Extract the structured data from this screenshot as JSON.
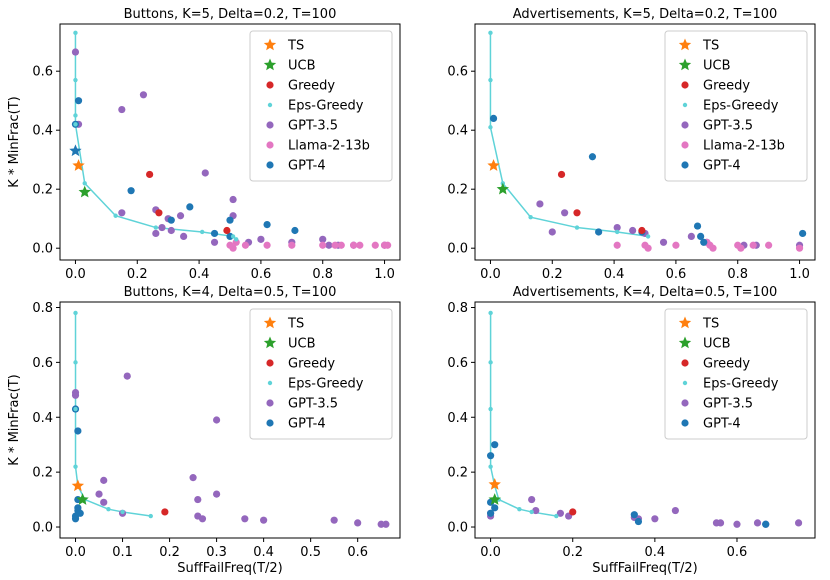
{
  "colors": {
    "TS": "#ff7f0e",
    "UCB": "#2ca02c",
    "Greedy": "#d62728",
    "Eps-Greedy": "#5fd3d8",
    "GPT-3.5": "#9467bd",
    "Llama-2-13b": "#e377c2",
    "GPT-4": "#1f77b4"
  },
  "chart_data": [
    {
      "type": "scatter",
      "title": "Buttons, K=5, Delta=0.2, T=100",
      "xlabel": "",
      "ylabel": "K * MinFrac(T)",
      "xlim": [
        -0.05,
        1.05
      ],
      "ylim": [
        -0.04,
        0.76
      ],
      "xticks": [
        0.0,
        0.2,
        0.4,
        0.6,
        0.8,
        1.0
      ],
      "xtick_labels": [
        "0.0",
        "0.2",
        "0.4",
        "0.6",
        "0.8",
        "1.0"
      ],
      "yticks": [
        0.0,
        0.2,
        0.4,
        0.6
      ],
      "ytick_labels": [
        "0.0",
        "0.2",
        "0.4",
        "0.6"
      ],
      "legend": [
        "TS",
        "UCB",
        "Greedy",
        "Eps-Greedy",
        "GPT-3.5",
        "Llama-2-13b",
        "GPT-4"
      ],
      "legend_position": "top-right",
      "series": {
        "TS": [
          [
            0.01,
            0.28
          ]
        ],
        "UCB": [
          [
            0.03,
            0.19
          ]
        ],
        "Greedy": [
          [
            0.24,
            0.25
          ],
          [
            0.27,
            0.12
          ],
          [
            0.49,
            0.06
          ]
        ],
        "Eps-Greedy": [
          [
            0.0,
            0.73
          ],
          [
            0.0,
            0.57
          ],
          [
            0.0,
            0.45
          ],
          [
            0.0,
            0.42
          ],
          [
            0.03,
            0.22
          ],
          [
            0.13,
            0.11
          ],
          [
            0.26,
            0.07
          ],
          [
            0.41,
            0.055
          ],
          [
            0.51,
            0.04
          ],
          [
            0.52,
            0.03
          ]
        ],
        "GPT-3.5": [
          [
            0.0,
            0.665
          ],
          [
            0.01,
            0.42
          ],
          [
            0.15,
            0.47
          ],
          [
            0.22,
            0.52
          ],
          [
            0.15,
            0.12
          ],
          [
            0.42,
            0.255
          ],
          [
            0.3,
            0.1
          ],
          [
            0.26,
            0.13
          ],
          [
            0.28,
            0.07
          ],
          [
            0.34,
            0.11
          ],
          [
            0.31,
            0.06
          ],
          [
            0.35,
            0.04
          ],
          [
            0.26,
            0.05
          ],
          [
            0.45,
            0.02
          ],
          [
            0.51,
            0.165
          ],
          [
            0.51,
            0.11
          ],
          [
            0.56,
            0.02
          ],
          [
            0.6,
            0.03
          ],
          [
            0.7,
            0.02
          ],
          [
            0.8,
            0.03
          ],
          [
            0.82,
            0.01
          ],
          [
            0.85,
            0.01
          ],
          [
            0.9,
            0.01
          ],
          [
            1.0,
            0.01
          ]
        ],
        "Llama-2-13b": [
          [
            0.5,
            0.01
          ],
          [
            0.51,
            0.0
          ],
          [
            0.52,
            0.02
          ],
          [
            0.55,
            0.01
          ],
          [
            0.62,
            0.01
          ],
          [
            0.7,
            0.01
          ],
          [
            0.8,
            0.01
          ],
          [
            0.84,
            0.01
          ],
          [
            0.86,
            0.01
          ],
          [
            0.9,
            0.01
          ],
          [
            0.92,
            0.01
          ],
          [
            0.97,
            0.01
          ],
          [
            1.0,
            0.01
          ],
          [
            1.01,
            0.01
          ]
        ],
        "GPT-4": [
          [
            0.0,
            0.33
          ],
          [
            0.01,
            0.5
          ],
          [
            0.0,
            0.42
          ],
          [
            0.18,
            0.195
          ],
          [
            0.31,
            0.095
          ],
          [
            0.37,
            0.14
          ],
          [
            0.45,
            0.05
          ],
          [
            0.5,
            0.095
          ],
          [
            0.5,
            0.04
          ],
          [
            0.62,
            0.08
          ],
          [
            0.71,
            0.06
          ]
        ]
      },
      "star_markers": {
        "GPT-4": [
          [
            0.0,
            0.33
          ]
        ]
      }
    },
    {
      "type": "scatter",
      "title": "Advertisements, K=5, Delta=0.2, T=100",
      "xlabel": "",
      "ylabel": "",
      "xlim": [
        -0.05,
        1.05
      ],
      "ylim": [
        -0.04,
        0.76
      ],
      "xticks": [
        0.0,
        0.2,
        0.4,
        0.6,
        0.8,
        1.0
      ],
      "xtick_labels": [
        "0.0",
        "0.2",
        "0.4",
        "0.6",
        "0.8",
        "1.0"
      ],
      "yticks": [
        0.0,
        0.2,
        0.4,
        0.6
      ],
      "ytick_labels": [
        "0.0",
        "0.2",
        "0.4",
        "0.6"
      ],
      "legend": [
        "TS",
        "UCB",
        "Greedy",
        "Eps-Greedy",
        "GPT-3.5",
        "Llama-2-13b",
        "GPT-4"
      ],
      "legend_position": "top-right",
      "series": {
        "TS": [
          [
            0.01,
            0.28
          ]
        ],
        "UCB": [
          [
            0.04,
            0.2
          ]
        ],
        "Greedy": [
          [
            0.23,
            0.25
          ],
          [
            0.28,
            0.12
          ],
          [
            0.49,
            0.06
          ]
        ],
        "Eps-Greedy": [
          [
            0.0,
            0.73
          ],
          [
            0.0,
            0.57
          ],
          [
            0.0,
            0.41
          ],
          [
            0.04,
            0.22
          ],
          [
            0.13,
            0.105
          ],
          [
            0.28,
            0.07
          ],
          [
            0.41,
            0.055
          ],
          [
            0.51,
            0.04
          ]
        ],
        "GPT-3.5": [
          [
            0.16,
            0.15
          ],
          [
            0.2,
            0.055
          ],
          [
            0.24,
            0.12
          ],
          [
            0.41,
            0.07
          ],
          [
            0.46,
            0.06
          ],
          [
            0.5,
            0.05
          ],
          [
            0.56,
            0.02
          ],
          [
            0.65,
            0.04
          ],
          [
            0.7,
            0.02
          ],
          [
            0.82,
            0.01
          ],
          [
            0.86,
            0.01
          ],
          [
            1.0,
            0.01
          ]
        ],
        "Llama-2-13b": [
          [
            0.41,
            0.01
          ],
          [
            0.5,
            0.01
          ],
          [
            0.51,
            0.0
          ],
          [
            0.6,
            0.01
          ],
          [
            0.7,
            0.02
          ],
          [
            0.71,
            0.01
          ],
          [
            0.72,
            0.0
          ],
          [
            0.8,
            0.01
          ],
          [
            0.81,
            0.0
          ],
          [
            0.85,
            0.01
          ],
          [
            0.9,
            0.01
          ],
          [
            1.0,
            0.0
          ]
        ],
        "GPT-4": [
          [
            0.01,
            0.44
          ],
          [
            0.33,
            0.31
          ],
          [
            0.35,
            0.055
          ],
          [
            0.49,
            0.055
          ],
          [
            0.67,
            0.075
          ],
          [
            0.68,
            0.04
          ],
          [
            0.69,
            0.02
          ],
          [
            1.01,
            0.05
          ]
        ]
      }
    },
    {
      "type": "scatter",
      "title": "Buttons, K=4, Delta=0.5, T=100",
      "xlabel": "SuffFailFreq(T/2)",
      "ylabel": "K * MinFrac(T)",
      "xlim": [
        -0.033,
        0.69
      ],
      "ylim": [
        -0.04,
        0.82
      ],
      "xticks": [
        0.0,
        0.1,
        0.2,
        0.3,
        0.4,
        0.5,
        0.6
      ],
      "xtick_labels": [
        "0.0",
        "0.1",
        "0.2",
        "0.3",
        "0.4",
        "0.5",
        "0.6"
      ],
      "yticks": [
        0.0,
        0.2,
        0.4,
        0.6,
        0.8
      ],
      "ytick_labels": [
        "0.0",
        "0.2",
        "0.4",
        "0.6",
        "0.8"
      ],
      "legend": [
        "TS",
        "UCB",
        "Greedy",
        "Eps-Greedy",
        "GPT-3.5",
        "GPT-4"
      ],
      "legend_position": "top-right",
      "series": {
        "TS": [
          [
            0.005,
            0.15
          ]
        ],
        "UCB": [
          [
            0.015,
            0.1
          ]
        ],
        "Greedy": [
          [
            0.19,
            0.055
          ]
        ],
        "Eps-Greedy": [
          [
            0.0,
            0.78
          ],
          [
            0.0,
            0.6
          ],
          [
            0.0,
            0.43
          ],
          [
            0.0,
            0.22
          ],
          [
            0.005,
            0.15
          ],
          [
            0.02,
            0.1
          ],
          [
            0.07,
            0.065
          ],
          [
            0.1,
            0.055
          ],
          [
            0.16,
            0.04
          ]
        ],
        "GPT-3.5": [
          [
            0.0,
            0.49
          ],
          [
            0.0,
            0.48
          ],
          [
            0.11,
            0.55
          ],
          [
            0.06,
            0.17
          ],
          [
            0.05,
            0.12
          ],
          [
            0.06,
            0.09
          ],
          [
            0.1,
            0.05
          ],
          [
            0.25,
            0.18
          ],
          [
            0.3,
            0.39
          ],
          [
            0.3,
            0.12
          ],
          [
            0.26,
            0.1
          ],
          [
            0.26,
            0.04
          ],
          [
            0.27,
            0.03
          ],
          [
            0.36,
            0.03
          ],
          [
            0.4,
            0.025
          ],
          [
            0.55,
            0.025
          ],
          [
            0.6,
            0.015
          ],
          [
            0.65,
            0.01
          ],
          [
            0.66,
            0.01
          ]
        ],
        "GPT-4": [
          [
            0.0,
            0.43
          ],
          [
            0.005,
            0.35
          ],
          [
            0.005,
            0.1
          ],
          [
            0.005,
            0.07
          ],
          [
            0.005,
            0.06
          ],
          [
            0.01,
            0.05
          ],
          [
            0.0,
            0.04
          ],
          [
            0.0,
            0.03
          ]
        ]
      }
    },
    {
      "type": "scatter",
      "title": "Advertisements, K=4, Delta=0.5, T=100",
      "xlabel": "SuffFailFreq(T/2)",
      "ylabel": "",
      "xlim": [
        -0.038,
        0.79
      ],
      "ylim": [
        -0.04,
        0.82
      ],
      "xticks": [
        0.0,
        0.2,
        0.4,
        0.6
      ],
      "xtick_labels": [
        "0.0",
        "0.2",
        "0.4",
        "0.6"
      ],
      "yticks": [
        0.0,
        0.2,
        0.4,
        0.6,
        0.8
      ],
      "ytick_labels": [
        "0.0",
        "0.2",
        "0.4",
        "0.6",
        "0.8"
      ],
      "legend": [
        "TS",
        "UCB",
        "Greedy",
        "Eps-Greedy",
        "GPT-3.5",
        "GPT-4"
      ],
      "legend_position": "top-right",
      "series": {
        "TS": [
          [
            0.01,
            0.155
          ]
        ],
        "UCB": [
          [
            0.01,
            0.1
          ]
        ],
        "Greedy": [
          [
            0.2,
            0.055
          ]
        ],
        "Eps-Greedy": [
          [
            0.0,
            0.78
          ],
          [
            0.0,
            0.6
          ],
          [
            0.0,
            0.43
          ],
          [
            0.0,
            0.22
          ],
          [
            0.01,
            0.15
          ],
          [
            0.02,
            0.1
          ],
          [
            0.07,
            0.065
          ],
          [
            0.1,
            0.055
          ],
          [
            0.16,
            0.04
          ]
        ],
        "GPT-3.5": [
          [
            0.1,
            0.1
          ],
          [
            0.11,
            0.06
          ],
          [
            0.17,
            0.05
          ],
          [
            0.19,
            0.04
          ],
          [
            0.35,
            0.035
          ],
          [
            0.36,
            0.03
          ],
          [
            0.4,
            0.03
          ],
          [
            0.45,
            0.06
          ],
          [
            0.55,
            0.015
          ],
          [
            0.56,
            0.015
          ],
          [
            0.6,
            0.01
          ],
          [
            0.65,
            0.015
          ],
          [
            0.67,
            0.01
          ],
          [
            0.75,
            0.015
          ],
          [
            0.0,
            0.04
          ],
          [
            0.0,
            0.05
          ]
        ],
        "GPT-4": [
          [
            0.0,
            0.26
          ],
          [
            0.01,
            0.3
          ],
          [
            0.0,
            0.09
          ],
          [
            0.01,
            0.07
          ],
          [
            0.0,
            0.05
          ],
          [
            0.35,
            0.045
          ],
          [
            0.36,
            0.02
          ],
          [
            0.67,
            0.01
          ]
        ]
      }
    }
  ]
}
